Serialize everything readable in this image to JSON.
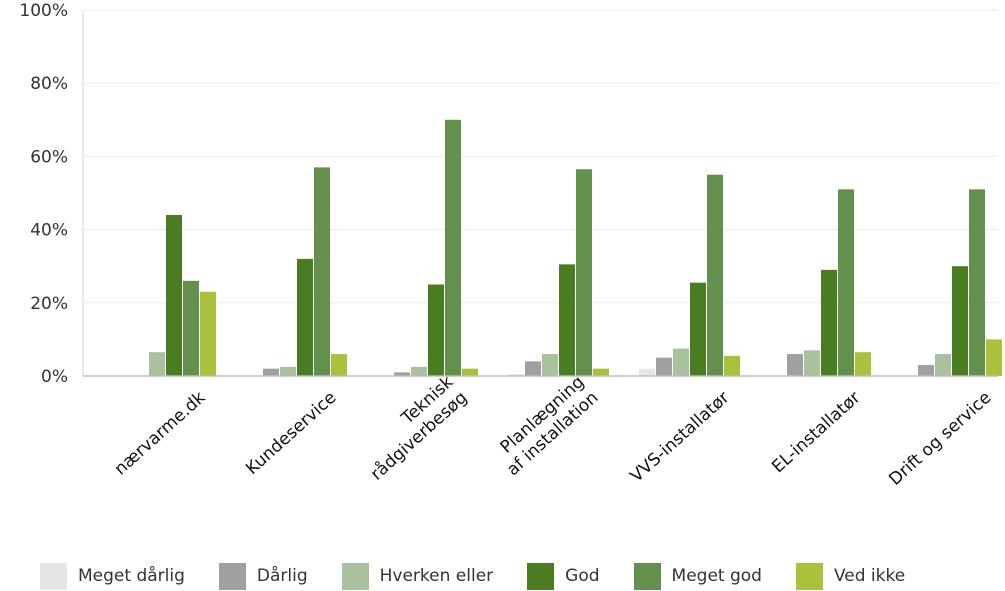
{
  "chart_data": {
    "type": "bar",
    "categories": [
      [
        "nærvarme.dk"
      ],
      [
        "Kundeservice"
      ],
      [
        "Teknisk",
        "rådgiverbesøg"
      ],
      [
        "Planlægning",
        "af installation"
      ],
      [
        "VVS-installatør"
      ],
      [
        "EL-installatør"
      ],
      [
        "Drift og service"
      ]
    ],
    "series": [
      {
        "name": "Meget dårlig",
        "color": "#e6e6e6",
        "values": [
          0,
          0,
          0,
          0.5,
          2,
          0,
          0
        ]
      },
      {
        "name": "Dårlig",
        "color": "#a0a0a0",
        "values": [
          0,
          2,
          1,
          4,
          5,
          6,
          3
        ]
      },
      {
        "name": "Hverken eller",
        "color": "#a9c19f",
        "values": [
          6.5,
          2.5,
          2.5,
          6,
          7.5,
          7,
          6
        ]
      },
      {
        "name": "God",
        "color": "#4a7c22",
        "values": [
          44,
          32,
          25,
          30.5,
          25.5,
          29,
          30
        ]
      },
      {
        "name": "Meget god",
        "color": "#64904e",
        "values": [
          26,
          57,
          70,
          56.5,
          55,
          51,
          51
        ]
      },
      {
        "name": "Ved ikke",
        "color": "#a8c23c",
        "values": [
          23,
          6,
          2,
          2,
          5.5,
          6.5,
          10
        ]
      }
    ],
    "y_ticks": [
      "0%",
      "20%",
      "40%",
      "60%",
      "80%",
      "100%"
    ],
    "ylim": [
      0,
      100
    ],
    "grid": true,
    "legend_position": "bottom"
  }
}
